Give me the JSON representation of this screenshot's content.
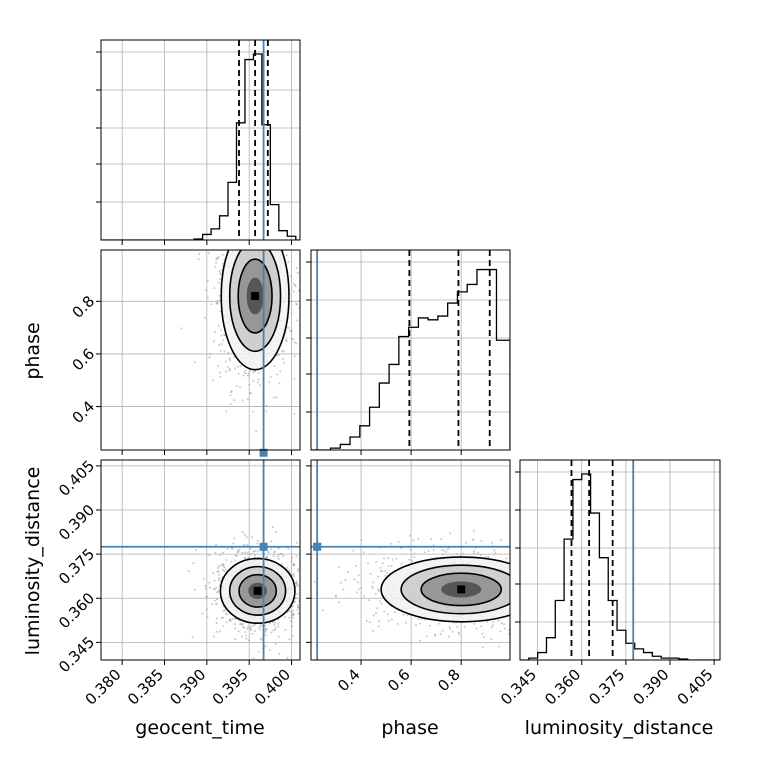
{
  "colors": {
    "truth": "#4682b4",
    "histogram": "#000000",
    "quantile": "#000000",
    "grid": "#b0b0b0"
  },
  "axis_labels": {
    "x": [
      "geocent_time",
      "phase",
      "luminosity_distance"
    ],
    "y": [
      "phase",
      "luminosity_distance"
    ]
  },
  "chart_data": [
    {
      "type": "histogram",
      "panel": "geocent_time marginal",
      "xlim": [
        0.3775,
        0.401
      ],
      "bin_edges": [
        0.3775,
        0.3785,
        0.3795,
        0.3805,
        0.3815,
        0.3825,
        0.3835,
        0.3845,
        0.3855,
        0.3865,
        0.3875,
        0.3885,
        0.3895,
        0.3905,
        0.3915,
        0.3925,
        0.3935,
        0.3945,
        0.3955,
        0.3965,
        0.3975,
        0.3985,
        0.3995,
        0.4005,
        0.401
      ],
      "counts": [
        0,
        0,
        0,
        0,
        0,
        0,
        0,
        0,
        0,
        0,
        0,
        0.005,
        0.03,
        0.06,
        0.13,
        0.31,
        0.63,
        0.97,
        1.0,
        0.62,
        0.19,
        0.05,
        0.02,
        0
      ],
      "quantiles": [
        0.3938,
        0.3957,
        0.3972
      ],
      "truth": 0.3967,
      "x_ticks": [
        0.38,
        0.385,
        0.39,
        0.395,
        0.4
      ],
      "x_tick_labels": [
        "0.380",
        "0.385",
        "0.390",
        "0.395",
        "0.400"
      ],
      "x_tick_labels_shown": false,
      "y_tick_labels_shown": false,
      "grid": true
    },
    {
      "type": "histogram",
      "panel": "phase marginal",
      "xlim": [
        0.2,
        0.995
      ],
      "bin_edges": [
        0.2,
        0.239,
        0.278,
        0.317,
        0.356,
        0.395,
        0.434,
        0.473,
        0.512,
        0.551,
        0.59,
        0.629,
        0.668,
        0.707,
        0.746,
        0.785,
        0.824,
        0.863,
        0.902,
        0.941,
        0.98,
        0.995
      ],
      "counts": [
        0,
        0,
        0.01,
        0.03,
        0.07,
        0.13,
        0.23,
        0.36,
        0.46,
        0.61,
        0.66,
        0.71,
        0.7,
        0.72,
        0.79,
        0.85,
        0.89,
        0.97,
        0.97,
        0.59,
        0.59
      ],
      "quantiles": [
        0.593,
        0.789,
        0.914
      ],
      "truth": 0.2245,
      "x_ticks": [
        0.4,
        0.6,
        0.8
      ],
      "x_tick_labels": [
        "0.4",
        "0.6",
        "0.8"
      ],
      "x_tick_labels_shown": false,
      "y_tick_labels_shown": false,
      "grid": true
    },
    {
      "type": "histogram",
      "panel": "luminosity_distance marginal",
      "xlim": [
        0.339,
        0.407
      ],
      "bin_edges": [
        0.339,
        0.342,
        0.345,
        0.348,
        0.351,
        0.354,
        0.357,
        0.36,
        0.363,
        0.366,
        0.369,
        0.372,
        0.375,
        0.378,
        0.381,
        0.384,
        0.387,
        0.39,
        0.393,
        0.396,
        0.399,
        0.402,
        0.407
      ],
      "counts": [
        0,
        0.01,
        0.04,
        0.12,
        0.32,
        0.65,
        0.97,
        1.0,
        0.79,
        0.55,
        0.32,
        0.16,
        0.09,
        0.06,
        0.04,
        0.02,
        0.01,
        0.01,
        0.005,
        0,
        0,
        0
      ],
      "quantiles": [
        0.3565,
        0.3625,
        0.3705
      ],
      "truth": 0.3775,
      "x_ticks": [
        0.345,
        0.36,
        0.375,
        0.39,
        0.405
      ],
      "x_tick_labels": [
        "0.345",
        "0.360",
        "0.375",
        "0.390",
        "0.405"
      ],
      "x_tick_labels_shown": true,
      "y_tick_labels_shown": false,
      "grid": true
    },
    {
      "type": "scatter",
      "panel": "geocent_time vs phase (2D posterior)",
      "xlim": [
        0.3775,
        0.401
      ],
      "ylim": [
        0.235,
        0.995
      ],
      "center": [
        0.3957,
        0.82
      ],
      "spread": [
        0.002,
        0.14
      ],
      "truth": [
        0.3967,
        0.2245
      ],
      "x_ticks": [
        0.38,
        0.385,
        0.39,
        0.395,
        0.4
      ],
      "y_ticks": [
        0.4,
        0.6,
        0.8
      ],
      "y_tick_labels": [
        "0.4",
        "0.6",
        "0.8"
      ],
      "x_tick_labels_shown": false,
      "y_tick_labels_shown": true,
      "grid": true
    },
    {
      "type": "scatter",
      "panel": "geocent_time vs luminosity_distance (2D posterior)",
      "xlim": [
        0.3775,
        0.401
      ],
      "ylim": [
        0.339,
        0.407
      ],
      "center": [
        0.396,
        0.3625
      ],
      "spread": [
        0.0022,
        0.0055
      ],
      "truth": [
        0.3967,
        0.3775
      ],
      "x_ticks": [
        0.38,
        0.385,
        0.39,
        0.395,
        0.4
      ],
      "x_tick_labels": [
        "0.380",
        "0.385",
        "0.390",
        "0.395",
        "0.400"
      ],
      "y_ticks": [
        0.345,
        0.36,
        0.375,
        0.39,
        0.405
      ],
      "y_tick_labels": [
        "0.345",
        "0.360",
        "0.375",
        "0.390",
        "0.405"
      ],
      "x_tick_labels_shown": true,
      "y_tick_labels_shown": true,
      "grid": true
    },
    {
      "type": "scatter",
      "panel": "phase vs luminosity_distance (2D posterior)",
      "xlim": [
        0.2,
        0.995
      ],
      "ylim": [
        0.339,
        0.407
      ],
      "center": [
        0.8,
        0.363
      ],
      "spread": [
        0.16,
        0.0055
      ],
      "truth": [
        0.2245,
        0.3775
      ],
      "x_ticks": [
        0.4,
        0.6,
        0.8
      ],
      "x_tick_labels": [
        "0.4",
        "0.6",
        "0.8"
      ],
      "y_ticks": [
        0.345,
        0.36,
        0.375,
        0.39,
        0.405
      ],
      "x_tick_labels_shown": true,
      "y_tick_labels_shown": false,
      "grid": true
    }
  ]
}
